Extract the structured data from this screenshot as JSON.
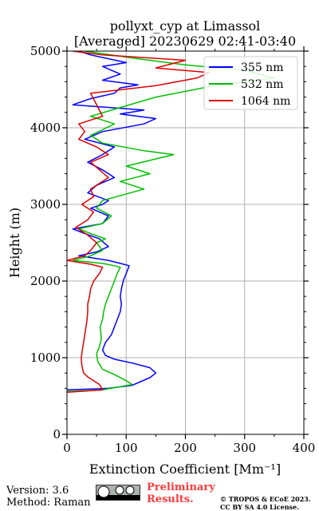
{
  "chart_data": {
    "type": "line",
    "title": "pollyxt_cyp at Limassol",
    "subtitle": "[Averaged] 20230629 02:41-03:40",
    "xlabel": "Extinction Coefficient [Mm⁻¹]",
    "ylabel": "Height (m)",
    "xlim": [
      0,
      400
    ],
    "ylim": [
      0,
      5000
    ],
    "xticks": [
      "0",
      "100",
      "200",
      "300",
      "400"
    ],
    "yticks": [
      "0",
      "1000",
      "2000",
      "3000",
      "4000",
      "5000"
    ],
    "grid": true,
    "legend_position": "top-right",
    "series": [
      {
        "name": "355 nm",
        "color": "#0000ff",
        "points": [
          [
            0,
            580
          ],
          [
            70,
            600
          ],
          [
            110,
            640
          ],
          [
            140,
            740
          ],
          [
            150,
            800
          ],
          [
            140,
            870
          ],
          [
            110,
            930
          ],
          [
            80,
            980
          ],
          [
            65,
            1030
          ],
          [
            60,
            1100
          ],
          [
            65,
            1200
          ],
          [
            75,
            1300
          ],
          [
            80,
            1400
          ],
          [
            85,
            1500
          ],
          [
            90,
            1600
          ],
          [
            92,
            1700
          ],
          [
            90,
            1800
          ],
          [
            92,
            1900
          ],
          [
            95,
            2000
          ],
          [
            100,
            2100
          ],
          [
            105,
            2200
          ],
          [
            90,
            2230
          ],
          [
            70,
            2270
          ],
          [
            45,
            2300
          ],
          [
            20,
            2330
          ],
          [
            50,
            2380
          ],
          [
            70,
            2450
          ],
          [
            55,
            2550
          ],
          [
            30,
            2620
          ],
          [
            10,
            2680
          ],
          [
            60,
            2750
          ],
          [
            70,
            2850
          ],
          [
            40,
            2950
          ],
          [
            60,
            3000
          ],
          [
            70,
            3050
          ],
          [
            35,
            3150
          ],
          [
            50,
            3250
          ],
          [
            80,
            3350
          ],
          [
            60,
            3450
          ],
          [
            35,
            3550
          ],
          [
            60,
            3650
          ],
          [
            80,
            3750
          ],
          [
            30,
            3850
          ],
          [
            60,
            3950
          ],
          [
            130,
            4050
          ],
          [
            150,
            4120
          ],
          [
            90,
            4180
          ],
          [
            130,
            4230
          ],
          [
            10,
            4300
          ],
          [
            40,
            4380
          ],
          [
            80,
            4450
          ],
          [
            90,
            4520
          ],
          [
            120,
            4560
          ],
          [
            60,
            4620
          ],
          [
            90,
            4700
          ],
          [
            60,
            4800
          ],
          [
            100,
            4850
          ],
          [
            40,
            4950
          ],
          [
            20,
            5000
          ]
        ]
      },
      {
        "name": "532 nm",
        "color": "#00bf00",
        "points": [
          [
            0,
            560
          ],
          [
            60,
            580
          ],
          [
            110,
            650
          ],
          [
            100,
            700
          ],
          [
            80,
            780
          ],
          [
            60,
            850
          ],
          [
            52,
            950
          ],
          [
            50,
            1050
          ],
          [
            55,
            1150
          ],
          [
            58,
            1250
          ],
          [
            56,
            1400
          ],
          [
            60,
            1500
          ],
          [
            62,
            1600
          ],
          [
            65,
            1700
          ],
          [
            70,
            1800
          ],
          [
            75,
            1900
          ],
          [
            80,
            2000
          ],
          [
            85,
            2100
          ],
          [
            90,
            2180
          ],
          [
            80,
            2200
          ],
          [
            60,
            2230
          ],
          [
            35,
            2250
          ],
          [
            10,
            2270
          ],
          [
            40,
            2330
          ],
          [
            60,
            2400
          ],
          [
            50,
            2500
          ],
          [
            65,
            2550
          ],
          [
            40,
            2620
          ],
          [
            20,
            2680
          ],
          [
            60,
            2750
          ],
          [
            75,
            2850
          ],
          [
            50,
            2950
          ],
          [
            60,
            3050
          ],
          [
            130,
            3200
          ],
          [
            90,
            3300
          ],
          [
            140,
            3400
          ],
          [
            100,
            3500
          ],
          [
            180,
            3650
          ],
          [
            130,
            3700
          ],
          [
            60,
            3800
          ],
          [
            40,
            3900
          ],
          [
            80,
            4050
          ],
          [
            40,
            4150
          ],
          [
            150,
            4400
          ],
          [
            250,
            4550
          ],
          [
            350,
            4650
          ],
          [
            300,
            4750
          ],
          [
            200,
            4820
          ],
          [
            120,
            4900
          ],
          [
            30,
            5000
          ]
        ]
      },
      {
        "name": "1064 nm",
        "color": "#dd0000",
        "points": [
          [
            0,
            550
          ],
          [
            60,
            580
          ],
          [
            55,
            650
          ],
          [
            45,
            700
          ],
          [
            35,
            750
          ],
          [
            28,
            800
          ],
          [
            25,
            900
          ],
          [
            24,
            1000
          ],
          [
            26,
            1100
          ],
          [
            28,
            1200
          ],
          [
            30,
            1300
          ],
          [
            32,
            1400
          ],
          [
            34,
            1500
          ],
          [
            35,
            1600
          ],
          [
            35,
            1700
          ],
          [
            38,
            1800
          ],
          [
            40,
            1900
          ],
          [
            45,
            2000
          ],
          [
            55,
            2100
          ],
          [
            60,
            2180
          ],
          [
            40,
            2220
          ],
          [
            15,
            2250
          ],
          [
            0,
            2270
          ],
          [
            30,
            2330
          ],
          [
            40,
            2400
          ],
          [
            50,
            2500
          ],
          [
            35,
            2600
          ],
          [
            15,
            2700
          ],
          [
            35,
            2800
          ],
          [
            45,
            2900
          ],
          [
            25,
            3000
          ],
          [
            45,
            3100
          ],
          [
            40,
            3200
          ],
          [
            70,
            3350
          ],
          [
            55,
            3450
          ],
          [
            40,
            3550
          ],
          [
            70,
            3650
          ],
          [
            50,
            3750
          ],
          [
            20,
            3850
          ],
          [
            30,
            3950
          ],
          [
            20,
            4050
          ],
          [
            60,
            4150
          ],
          [
            40,
            4450
          ],
          [
            150,
            4550
          ],
          [
            220,
            4650
          ],
          [
            240,
            4720
          ],
          [
            150,
            4780
          ],
          [
            200,
            4880
          ],
          [
            60,
            4950
          ],
          [
            10,
            5000
          ]
        ]
      }
    ]
  },
  "footer": {
    "version": "Version: 3.6",
    "method": "Method: Raman",
    "preliminary_line1": "Preliminary",
    "preliminary_line2": "Results.",
    "copyright_line1": "© TROPOS & ECoE 2023.",
    "copyright_line2": "CC BY SA 4.0 License."
  },
  "colors": {
    "grid": "#b0b0b0",
    "background": "#ffffff"
  }
}
